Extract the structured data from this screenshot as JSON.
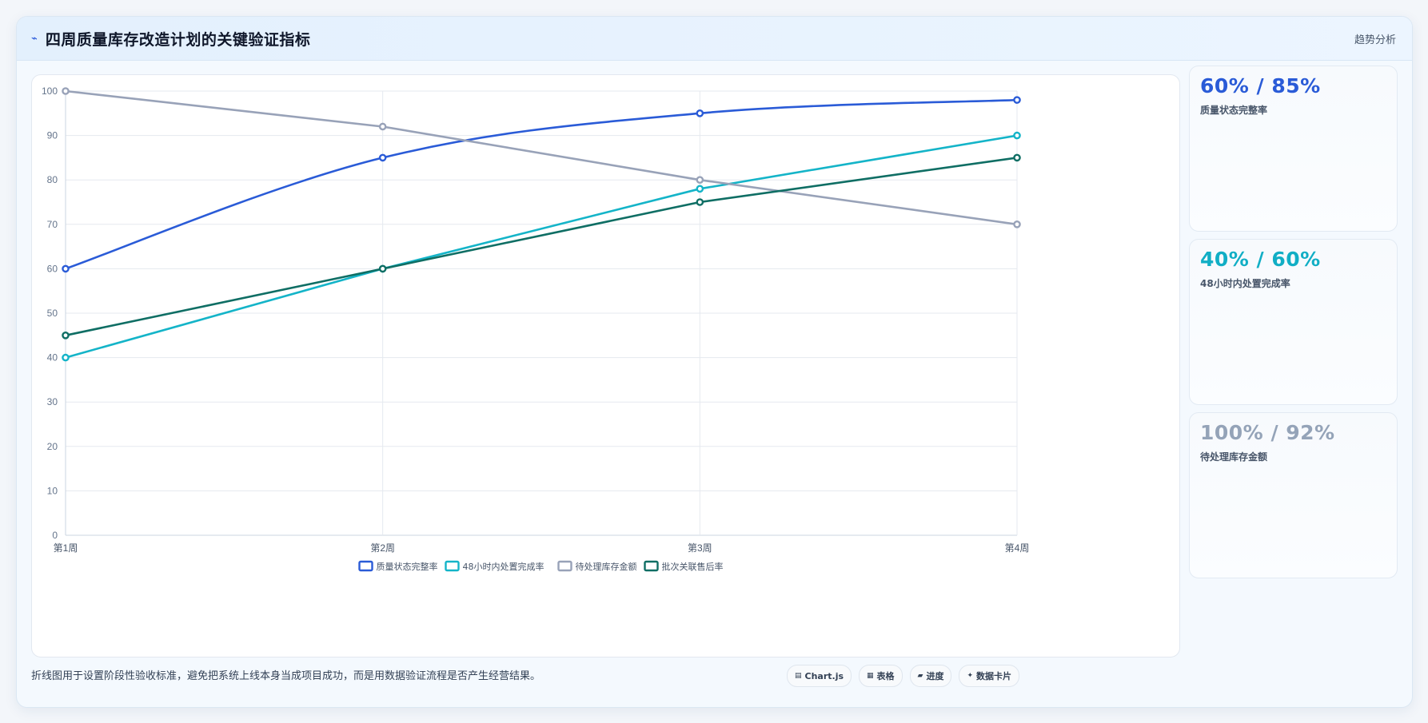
{
  "header": {
    "icon": "trend-line-icon",
    "title": "四周质量库存改造计划的关键验证指标",
    "right_button": "趋势分析"
  },
  "kpis": [
    {
      "value": "60% / 85%",
      "label": "质量状态完整率",
      "color": "#2a5bd7"
    },
    {
      "value": "40% / 60%",
      "label": "48小时内处置完成率",
      "color": "#11aec5"
    },
    {
      "value": "100% / 92%",
      "label": "待处理库存金额",
      "color": "#94a3b8"
    }
  ],
  "footer": {
    "note": "折线图用于设置阶段性验收标准，避免把系统上线本身当成项目成功，而是用数据验证流程是否产生经营结果。",
    "chips": [
      {
        "icon": "chart-icon",
        "glyph": "▤",
        "label": "Chart.js"
      },
      {
        "icon": "table-icon",
        "glyph": "▦",
        "label": "表格"
      },
      {
        "icon": "progress-icon",
        "glyph": "▰",
        "label": "进度"
      },
      {
        "icon": "card-icon",
        "glyph": "✦",
        "label": "数据卡片"
      }
    ]
  },
  "chart_data": {
    "type": "line",
    "title": "",
    "xlabel": "",
    "ylabel": "",
    "categories": [
      "第1周",
      "第2周",
      "第3周",
      "第4周"
    ],
    "ylim": [
      0,
      100
    ],
    "yticks": [
      0,
      10,
      20,
      30,
      40,
      50,
      60,
      70,
      80,
      90,
      100
    ],
    "grid": true,
    "legend_position": "bottom-center",
    "series": [
      {
        "name": "质量状态完整率",
        "values": [
          60,
          85,
          95,
          98
        ],
        "color": "#2a5bd7",
        "smooth": true
      },
      {
        "name": "48小时内处置完成率",
        "values": [
          40,
          60,
          78,
          90
        ],
        "color": "#14b4c8",
        "smooth": false
      },
      {
        "name": "待处理库存金额",
        "values": [
          100,
          92,
          80,
          70
        ],
        "color": "#98a2b8",
        "smooth": false
      },
      {
        "name": "批次关联售后率",
        "values": [
          45,
          60,
          75,
          85
        ],
        "color": "#0f6e64",
        "smooth": false
      }
    ]
  }
}
